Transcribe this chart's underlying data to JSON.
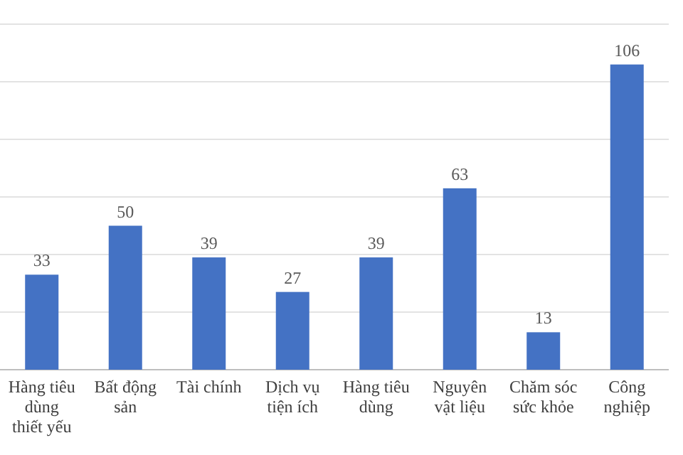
{
  "chart_data": {
    "type": "bar",
    "categories": [
      "Hàng tiêu dùng thiết yếu",
      "Bất động sản",
      "Tài chính",
      "Dịch vụ tiện ích",
      "Hàng tiêu dùng",
      "Nguyên vật liệu",
      "Chăm sóc sức khỏe",
      "Công nghiệp"
    ],
    "values": [
      33,
      50,
      39,
      27,
      39,
      63,
      13,
      106
    ],
    "color": "#4472c4",
    "ylim": [
      0,
      120
    ],
    "yticks": [
      0,
      20,
      40,
      60,
      80,
      100,
      120
    ],
    "tick_labels": "x",
    "grid": "y",
    "data_labels": true
  }
}
